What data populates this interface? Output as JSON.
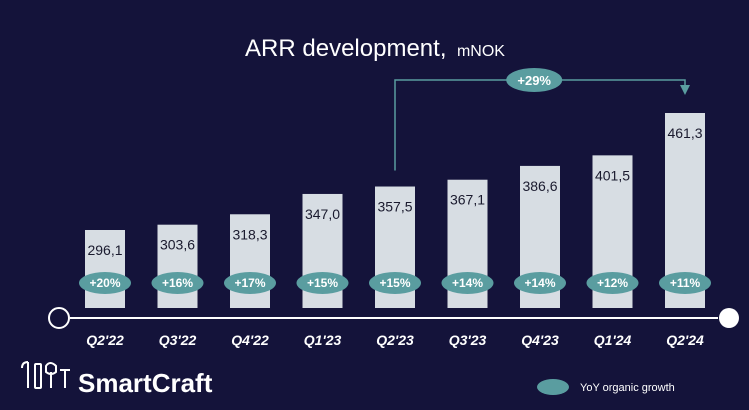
{
  "chart_data": {
    "type": "bar",
    "title": "ARR development,",
    "unit": "mNOK",
    "categories": [
      "Q2'22",
      "Q3'22",
      "Q4'22",
      "Q1'23",
      "Q2'23",
      "Q3'23",
      "Q4'23",
      "Q1'24",
      "Q2'24"
    ],
    "values": [
      296.1,
      303.6,
      318.3,
      347.0,
      357.5,
      367.1,
      386.6,
      401.5,
      461.3
    ],
    "value_labels": [
      "296,1",
      "303,6",
      "318,3",
      "347,0",
      "357,5",
      "367,1",
      "386,6",
      "401,5",
      "461,3"
    ],
    "yoy_growth": [
      "+20%",
      "+16%",
      "+17%",
      "+15%",
      "+15%",
      "+14%",
      "+14%",
      "+12%",
      "+11%"
    ],
    "callout": {
      "from": "Q2'23",
      "to": "Q2'24",
      "label": "+29%"
    },
    "legend": {
      "label": "YoY organic growth",
      "placement": "bottom-right"
    },
    "grid": false,
    "colors": {
      "bar": "#d7dde3",
      "growth": "#5a9da0",
      "background": "#14133a",
      "axis": "#ffffff"
    }
  },
  "brand": {
    "name": "SmartCraft"
  }
}
